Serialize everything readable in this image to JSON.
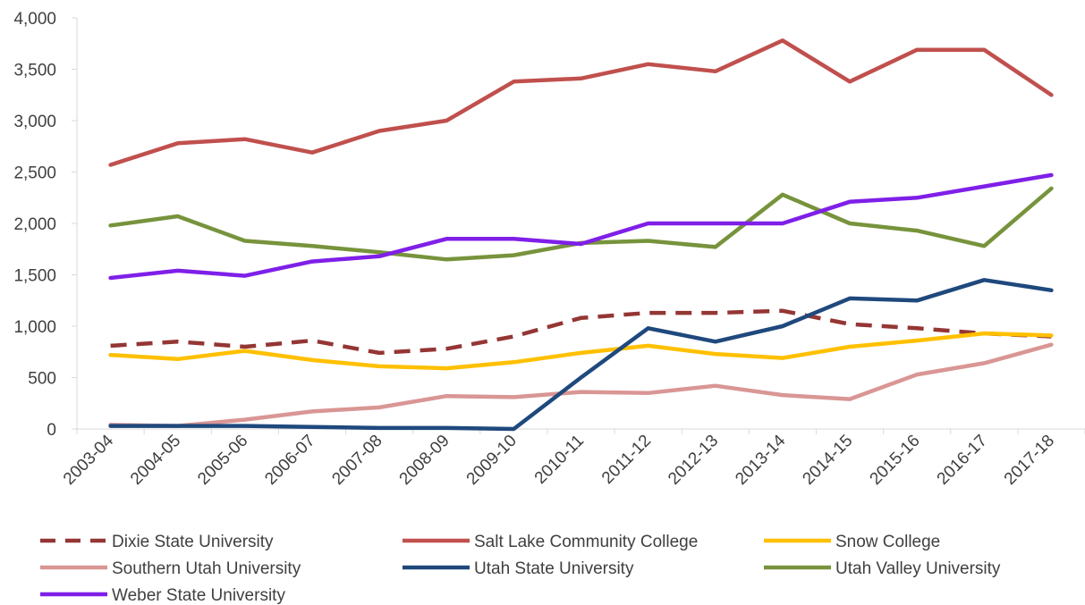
{
  "chart_data": {
    "type": "line",
    "title": "",
    "xlabel": "",
    "ylabel": "",
    "x": [
      "2003-04",
      "2004-05",
      "2005-06",
      "2006-07",
      "2007-08",
      "2008-09",
      "2009-10",
      "2010-11",
      "2011-12",
      "2012-13",
      "2013-14",
      "2014-15",
      "2015-16",
      "2016-17",
      "2017-18"
    ],
    "ylim": [
      0,
      4000
    ],
    "yticks": [
      0,
      500,
      1000,
      1500,
      2000,
      2500,
      3000,
      3500,
      4000
    ],
    "ytick_labels": [
      "0",
      "500",
      "1,000",
      "1,500",
      "2,000",
      "2,500",
      "3,000",
      "3,500",
      "4,000"
    ],
    "grid": false,
    "legend_position": "bottom",
    "series": [
      {
        "name": "Dixie State University",
        "color": "#943634",
        "dashed": true,
        "values": [
          810,
          850,
          800,
          860,
          740,
          780,
          900,
          1080,
          1130,
          1130,
          1150,
          1020,
          980,
          930,
          900
        ]
      },
      {
        "name": "Salt Lake Community College",
        "color": "#C0504D",
        "dashed": false,
        "values": [
          2570,
          2780,
          2820,
          2690,
          2900,
          3000,
          3380,
          3410,
          3550,
          3480,
          3780,
          3380,
          3690,
          3690,
          3250
        ]
      },
      {
        "name": "Snow College",
        "color": "#FFC000",
        "dashed": false,
        "values": [
          720,
          680,
          760,
          670,
          610,
          590,
          650,
          740,
          810,
          730,
          690,
          800,
          860,
          930,
          910
        ]
      },
      {
        "name": "Southern Utah University",
        "color": "#D99694",
        "dashed": false,
        "values": [
          40,
          30,
          90,
          170,
          210,
          320,
          310,
          360,
          350,
          420,
          330,
          290,
          530,
          640,
          820
        ]
      },
      {
        "name": "Utah State University",
        "color": "#1F497D",
        "dashed": false,
        "values": [
          30,
          30,
          30,
          20,
          10,
          10,
          0,
          500,
          980,
          850,
          1000,
          1270,
          1250,
          1450,
          1350
        ]
      },
      {
        "name": "Utah Valley University",
        "color": "#77933C",
        "dashed": false,
        "values": [
          1980,
          2070,
          1830,
          1780,
          1720,
          1650,
          1690,
          1810,
          1830,
          1770,
          2280,
          2000,
          1930,
          1780,
          2340
        ]
      },
      {
        "name": "Weber State University",
        "color": "#7F1FE8",
        "dashed": false,
        "values": [
          1470,
          1540,
          1490,
          1630,
          1680,
          1850,
          1850,
          1800,
          2000,
          2000,
          2000,
          2210,
          2250,
          2360,
          2470
        ]
      }
    ]
  }
}
